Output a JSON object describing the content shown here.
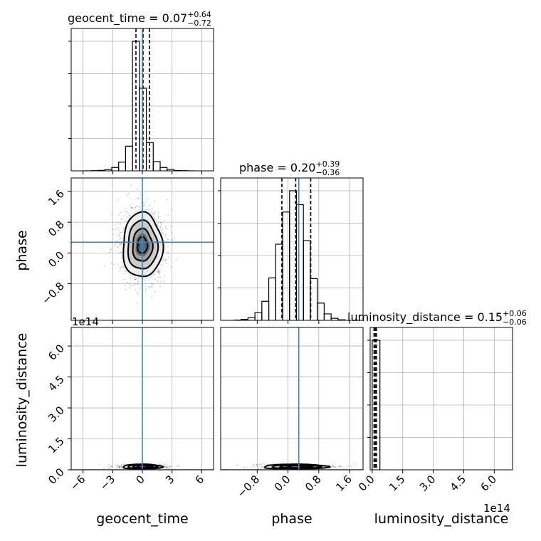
{
  "chart_data": {
    "type": "corner",
    "parameters": [
      "geocent_time",
      "phase",
      "luminosity_distance"
    ],
    "axis_offset_text": "1e14",
    "truth_color": "#4682b4",
    "marginals": [
      {
        "parameter": "geocent_time",
        "title_main": "geocent_time = 0.07",
        "title_plus": "+0.64",
        "title_minus": "−0.72",
        "median": 0.07,
        "lower": -0.65,
        "upper": 0.71,
        "truth": 0.0,
        "xlim": [
          -7.2,
          7.2
        ],
        "bin_edges": [
          -5.9,
          -5.2,
          -4.5,
          -3.8,
          -3.1,
          -2.4,
          -1.7,
          -1.0,
          -0.3,
          0.4,
          1.1,
          1.8,
          2.5,
          3.2,
          3.9,
          4.6,
          5.3
        ],
        "counts": [
          1,
          3,
          8,
          22,
          58,
          148,
          420,
          2210,
          1410,
          482,
          158,
          58,
          22,
          7,
          3,
          1
        ]
      },
      {
        "parameter": "phase",
        "title_main": "phase = 0.20",
        "title_plus": "+0.39",
        "title_minus": "−0.36",
        "median": 0.2,
        "lower": -0.16,
        "upper": 0.59,
        "truth": 0.28,
        "xlim": [
          -1.75,
          1.95
        ],
        "bin_edges": [
          -1.4,
          -1.22,
          -1.04,
          -0.86,
          -0.68,
          -0.5,
          -0.32,
          -0.14,
          0.04,
          0.22,
          0.4,
          0.58,
          0.76,
          0.94,
          1.12,
          1.3,
          1.48
        ],
        "counts": [
          2,
          6,
          18,
          52,
          130,
          290,
          520,
          740,
          885,
          790,
          545,
          285,
          118,
          44,
          14,
          4
        ]
      },
      {
        "parameter": "luminosity_distance",
        "title_main": "luminosity_distance = 0.15",
        "title_plus": "+0.06",
        "title_minus": "−0.06",
        "median": 0.15,
        "lower": 0.09,
        "upper": 0.21,
        "xlim": [
          -0.1,
          6.9
        ],
        "bin_edges": [
          0.0,
          0.38
        ],
        "counts": [
          1
        ]
      }
    ],
    "axes": {
      "geocent_time": {
        "ticks": [
          -6,
          -3,
          0,
          3,
          6
        ],
        "tick_labels": [
          "−6",
          "−3",
          "0",
          "3",
          "6"
        ]
      },
      "phase": {
        "ticks": [
          -0.8,
          0.0,
          0.8,
          1.6
        ],
        "tick_labels": [
          "−0.8",
          "0.0",
          "0.8",
          "1.6"
        ]
      },
      "luminosity_distance": {
        "ticks": [
          0.0,
          1.5,
          3.0,
          4.5,
          6.0
        ],
        "tick_labels": [
          "0.0",
          "1.5",
          "3.0",
          "4.5",
          "6.0"
        ],
        "ylim": [
          0.0,
          6.9
        ]
      },
      "phase_y": {
        "ticks": [
          -0.8,
          0.0,
          0.8,
          1.6
        ],
        "tick_labels": [
          "−0.8",
          "0.0",
          "0.8",
          "1.6"
        ],
        "ylim": [
          -1.75,
          1.95
        ]
      }
    },
    "joint": {
      "geocent_time_vs_phase": {
        "mean": [
          0.0,
          0.2
        ],
        "sd": [
          1.0,
          0.42
        ],
        "contour_sigma_levels": [
          0.5,
          1.0,
          1.5,
          2.0
        ]
      },
      "geocent_time_vs_luminosity_distance": {
        "mean": [
          0.0,
          0.15
        ],
        "sd": [
          1.0,
          0.06
        ]
      },
      "phase_vs_luminosity_distance": {
        "mean": [
          0.2,
          0.15
        ],
        "sd": [
          0.42,
          0.06
        ]
      }
    },
    "grid": true
  }
}
